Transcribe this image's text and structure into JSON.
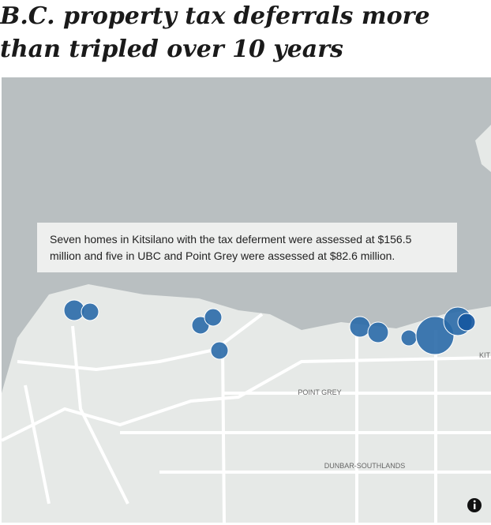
{
  "header": {
    "title": "B.C. property tax deferrals more than tripled over 10 years"
  },
  "map": {
    "annotation": "Seven homes in Kitsilano with the tax deferment were assessed at $156.5 million and five in UBC and Point Grey were assessed at $82.6 million.",
    "places": [
      "POINT GREY",
      "DUNBAR-SOUTHLANDS",
      "KIT"
    ]
  }
}
